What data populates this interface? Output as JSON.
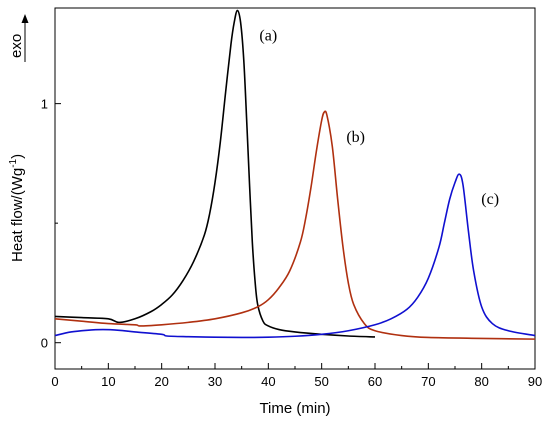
{
  "chart_data": {
    "type": "line",
    "title": "",
    "xlabel": "Time (min)",
    "ylabel_main": "Heat flow/(Wg",
    "ylabel_sup": "-1",
    "ylabel_close": ")",
    "exo_label": "exo",
    "xlim": [
      0,
      90
    ],
    "ylim": [
      -0.11,
      1.4
    ],
    "x_ticks": [
      0,
      10,
      20,
      30,
      40,
      50,
      60,
      70,
      80,
      90
    ],
    "y_ticks": [
      0,
      1
    ],
    "grid": false,
    "series": [
      {
        "color": "#000000",
        "annotation": "(a)",
        "x": [
          0,
          5,
          10,
          12,
          15,
          18,
          20,
          22,
          24,
          26,
          28,
          29,
          30,
          31,
          32,
          33,
          33.6,
          34.2,
          34.8,
          35.4,
          36,
          36.5,
          37,
          37.5,
          38,
          39,
          40,
          42,
          45,
          50,
          55,
          60
        ],
        "y": [
          0.11,
          0.105,
          0.1,
          0.085,
          0.1,
          0.13,
          0.16,
          0.2,
          0.26,
          0.34,
          0.45,
          0.54,
          0.67,
          0.84,
          1.05,
          1.25,
          1.34,
          1.39,
          1.34,
          1.18,
          0.9,
          0.65,
          0.42,
          0.26,
          0.16,
          0.09,
          0.07,
          0.055,
          0.045,
          0.035,
          0.028,
          0.024
        ]
      },
      {
        "color": "#b03010",
        "annotation": "(b)",
        "x": [
          0,
          5,
          10,
          15,
          16,
          20,
          25,
          30,
          35,
          38,
          40,
          42,
          44,
          46,
          47,
          48,
          49,
          50,
          50.5,
          51,
          52,
          53,
          54,
          55,
          56,
          58,
          60,
          65,
          70,
          80,
          90
        ],
        "y": [
          0.1,
          0.09,
          0.08,
          0.075,
          0.07,
          0.075,
          0.085,
          0.1,
          0.125,
          0.15,
          0.18,
          0.23,
          0.3,
          0.42,
          0.52,
          0.65,
          0.8,
          0.93,
          0.965,
          0.95,
          0.82,
          0.6,
          0.4,
          0.25,
          0.16,
          0.08,
          0.05,
          0.03,
          0.022,
          0.018,
          0.015
        ]
      },
      {
        "color": "#1010d0",
        "annotation": "(c)",
        "x": [
          0,
          3,
          6,
          9,
          12,
          15,
          20,
          21,
          25,
          30,
          35,
          40,
          45,
          50,
          55,
          60,
          63,
          66,
          68,
          70,
          72,
          73,
          74,
          75,
          75.8,
          76.5,
          77.5,
          78.5,
          80,
          82,
          85,
          90
        ],
        "y": [
          0.03,
          0.045,
          0.052,
          0.055,
          0.052,
          0.045,
          0.035,
          0.028,
          0.025,
          0.023,
          0.022,
          0.023,
          0.027,
          0.035,
          0.05,
          0.075,
          0.1,
          0.14,
          0.19,
          0.27,
          0.4,
          0.5,
          0.6,
          0.67,
          0.705,
          0.66,
          0.47,
          0.3,
          0.15,
          0.08,
          0.05,
          0.03
        ]
      }
    ]
  }
}
